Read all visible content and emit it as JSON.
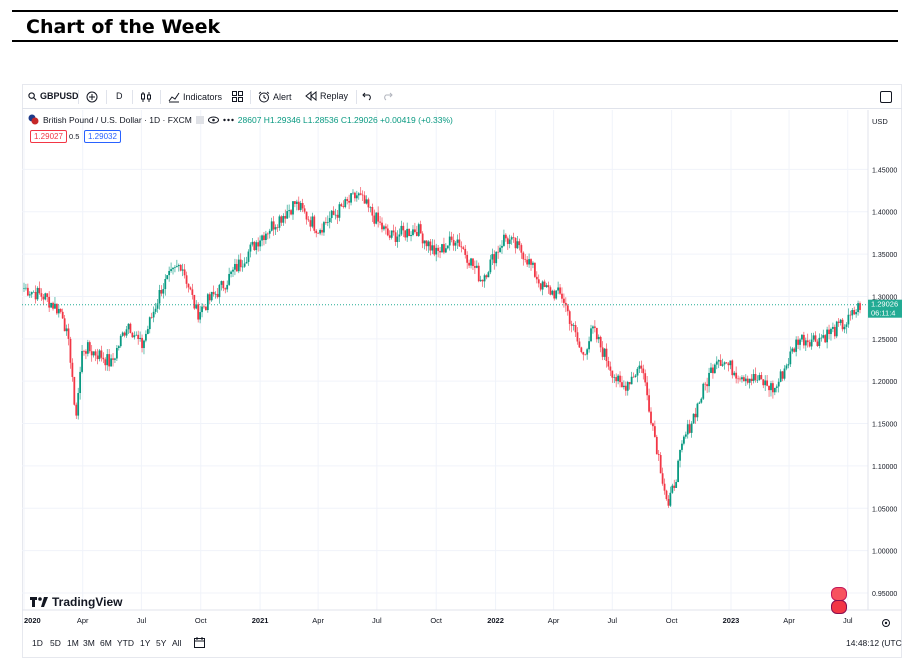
{
  "heading": {
    "title": "Chart of the Week"
  },
  "toolbar": {
    "symbol": "GBPUSD",
    "interval": "D",
    "indicators_label": "Indicators",
    "alert_label": "Alert",
    "replay_label": "Replay",
    "icons": [
      "search-icon",
      "add-compare-icon",
      "candles-icon",
      "indicators-icon",
      "templates-icon",
      "alert-clock-icon",
      "replay-icon",
      "undo-icon",
      "redo-icon",
      "fullscreen-icon"
    ]
  },
  "legend": {
    "instrument": "British Pound / U.S. Dollar · 1D · FXCM",
    "ohlc": "28607 H1.29346 L1.28536 C1.29026 +0.00419 (+0.33%)",
    "bid": "1.29027",
    "spread": "0.5",
    "ask": "1.29032"
  },
  "price_axis": {
    "currency": "USD",
    "current_price": "1.29026",
    "countdown": "06:11:4"
  },
  "watermark": {
    "text": "TradingView"
  },
  "bottombar": {
    "ranges": [
      "1D",
      "5D",
      "1M",
      "3M",
      "6M",
      "YTD",
      "1Y",
      "5Y",
      "All"
    ],
    "clock": "14:48:12 (UTC"
  },
  "colors": {
    "up": "#089981",
    "down": "#f23645",
    "accent": "#2962ff",
    "price_line": "#22ab94"
  },
  "chart_data": {
    "type": "candlestick",
    "title": "British Pound / U.S. Dollar · 1D · FXCM",
    "xlabel": "",
    "ylabel": "",
    "x_ticks": [
      "2020",
      "Apr",
      "Jul",
      "Oct",
      "2021",
      "Apr",
      "Jul",
      "Oct",
      "2022",
      "Apr",
      "Jul",
      "Oct",
      "2023",
      "Apr",
      "Jul"
    ],
    "y_ticks": [
      "0.95000",
      "1.00000",
      "1.05000",
      "1.10000",
      "1.15000",
      "1.20000",
      "1.25000",
      "1.30000",
      "1.35000",
      "1.40000",
      "1.45000"
    ],
    "ylim": [
      0.93,
      1.52
    ],
    "xlim": [
      "2020-01-01",
      "2023-07-20"
    ],
    "series": [
      {
        "points": [
          [
            "2020-01-01",
            1.31
          ],
          [
            "2020-02-01",
            1.3
          ],
          [
            "2020-03-01",
            1.28
          ],
          [
            "2020-03-15",
            1.22
          ],
          [
            "2020-03-20",
            1.15
          ],
          [
            "2020-04-01",
            1.24
          ],
          [
            "2020-05-01",
            1.23
          ],
          [
            "2020-05-15",
            1.22
          ],
          [
            "2020-06-10",
            1.27
          ],
          [
            "2020-07-01",
            1.24
          ],
          [
            "2020-08-01",
            1.31
          ],
          [
            "2020-09-01",
            1.34
          ],
          [
            "2020-09-25",
            1.28
          ],
          [
            "2020-11-01",
            1.31
          ],
          [
            "2021-01-01",
            1.37
          ],
          [
            "2021-02-24",
            1.41
          ],
          [
            "2021-04-01",
            1.38
          ],
          [
            "2021-06-01",
            1.42
          ],
          [
            "2021-07-20",
            1.37
          ],
          [
            "2021-09-01",
            1.38
          ],
          [
            "2021-10-01",
            1.35
          ],
          [
            "2021-11-01",
            1.37
          ],
          [
            "2021-12-10",
            1.32
          ],
          [
            "2022-01-15",
            1.37
          ],
          [
            "2022-02-15",
            1.35
          ],
          [
            "2022-03-15",
            1.31
          ],
          [
            "2022-04-15",
            1.3
          ],
          [
            "2022-05-15",
            1.23
          ],
          [
            "2022-06-01",
            1.26
          ],
          [
            "2022-07-15",
            1.19
          ],
          [
            "2022-08-15",
            1.22
          ],
          [
            "2022-09-26",
            1.05
          ],
          [
            "2022-10-20",
            1.13
          ],
          [
            "2022-12-10",
            1.23
          ],
          [
            "2023-01-10",
            1.21
          ],
          [
            "2023-02-15",
            1.2
          ],
          [
            "2023-03-10",
            1.19
          ],
          [
            "2023-04-15",
            1.25
          ],
          [
            "2023-05-15",
            1.25
          ],
          [
            "2023-06-10",
            1.26
          ],
          [
            "2023-07-01",
            1.27
          ],
          [
            "2023-07-20",
            1.29
          ]
        ]
      }
    ],
    "current_price": 1.29026,
    "grid": true,
    "legend": "top-left"
  }
}
